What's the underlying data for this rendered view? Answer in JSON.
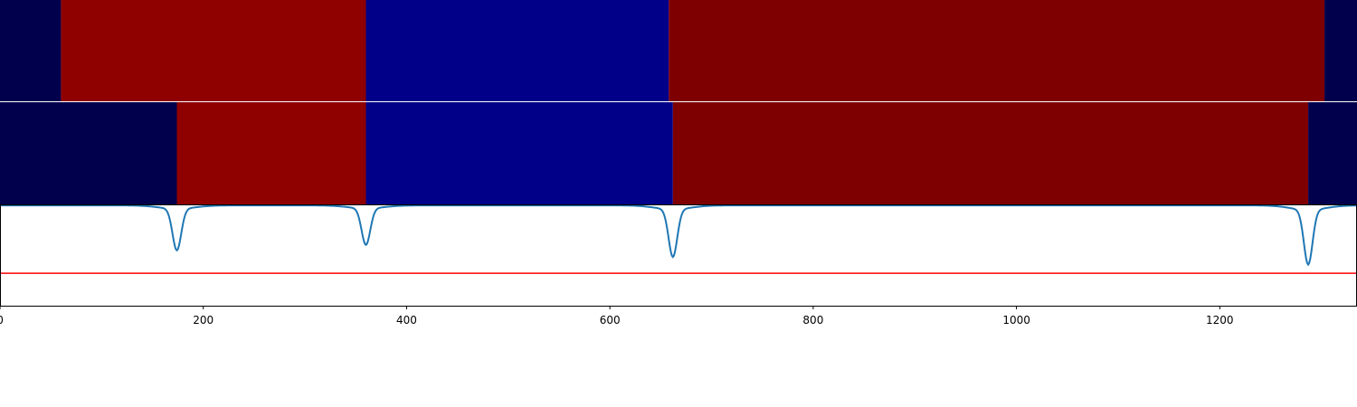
{
  "chart_data": [
    {
      "type": "heatmap",
      "panel": "top-band",
      "xlim": [
        0,
        1335
      ],
      "segments": [
        {
          "start": 0,
          "end": 60,
          "color": "#00004c"
        },
        {
          "start": 60,
          "end": 360,
          "color": "#8f0000"
        },
        {
          "start": 360,
          "end": 658,
          "color": "#000089"
        },
        {
          "start": 658,
          "end": 1303,
          "color": "#7f0000"
        },
        {
          "start": 1303,
          "end": 1335,
          "color": "#00004c"
        }
      ]
    },
    {
      "type": "heatmap",
      "panel": "middle-band",
      "xlim": [
        0,
        1335
      ],
      "segments": [
        {
          "start": 0,
          "end": 174,
          "color": "#00004c"
        },
        {
          "start": 174,
          "end": 360,
          "color": "#8f0000"
        },
        {
          "start": 360,
          "end": 662,
          "color": "#000089"
        },
        {
          "start": 662,
          "end": 1287,
          "color": "#7f0000"
        },
        {
          "start": 1287,
          "end": 1335,
          "color": "#00004c"
        }
      ]
    },
    {
      "type": "line",
      "panel": "bottom",
      "xlim": [
        0,
        1335
      ],
      "ylim": [
        -1.0,
        0.0
      ],
      "xticks": [
        0,
        200,
        400,
        600,
        800,
        1000,
        1200
      ],
      "xtick_labels": [
        "0",
        "200",
        "400",
        "600",
        "800",
        "1000",
        "1200"
      ],
      "threshold": {
        "y": -0.68,
        "color": "#ff0000"
      },
      "series": [
        {
          "color": "#1f77b4",
          "baseline": -0.01,
          "dips": [
            {
              "x": 174,
              "depth": -0.42
            },
            {
              "x": 360,
              "depth": -0.37
            },
            {
              "x": 662,
              "depth": -0.48
            },
            {
              "x": 1287,
              "depth": -0.55
            }
          ]
        }
      ]
    }
  ]
}
